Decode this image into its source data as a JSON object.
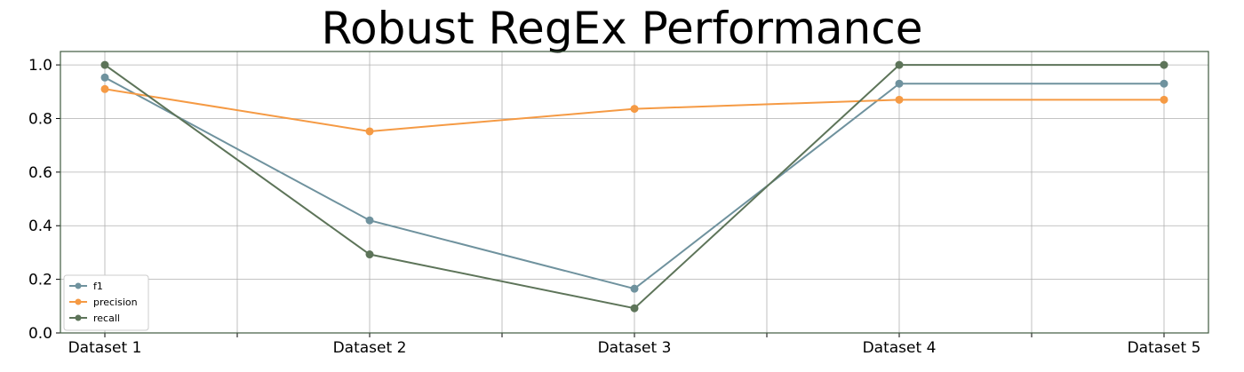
{
  "chart_data": {
    "type": "line",
    "title": "Robust RegEx Performance",
    "xlabel": "",
    "ylabel": "",
    "categories": [
      "Dataset 1",
      "Dataset 2",
      "Dataset 3",
      "Dataset 4",
      "Dataset 5"
    ],
    "ylim": [
      0.0,
      1.05
    ],
    "yticks": [
      "0.0",
      "0.2",
      "0.4",
      "0.6",
      "0.8",
      "1.0"
    ],
    "grid": true,
    "legend_position": "bottom-left",
    "series": [
      {
        "name": "f1",
        "color": "#6f929e",
        "values": [
          0.953,
          0.42,
          0.165,
          0.93,
          0.93
        ]
      },
      {
        "name": "precision",
        "color": "#f59a44",
        "values": [
          0.91,
          0.752,
          0.836,
          0.87,
          0.87
        ]
      },
      {
        "name": "recall",
        "color": "#5d7459",
        "values": [
          1.0,
          0.293,
          0.092,
          1.0,
          1.0
        ]
      }
    ]
  }
}
